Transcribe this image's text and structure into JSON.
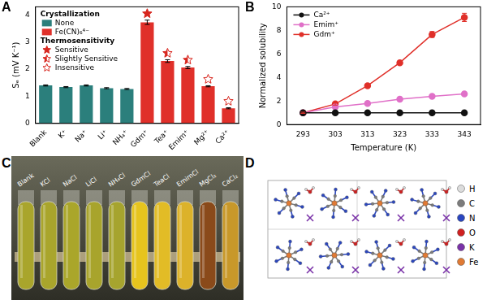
{
  "chart_data": [
    {
      "panel_label": "A",
      "type": "bar",
      "categories": [
        "Blank",
        "K⁺",
        "Na⁺",
        "Li⁺",
        "NH₄⁺",
        "Gdm⁺",
        "Tea⁺",
        "Emim⁺",
        "Mg²⁺",
        "Ca²⁺"
      ],
      "values": [
        1.4,
        1.34,
        1.4,
        1.3,
        1.27,
        3.73,
        2.3,
        2.06,
        1.37,
        0.56
      ],
      "errors": [
        0.02,
        0.02,
        0.02,
        0.02,
        0.02,
        0.08,
        0.05,
        0.04,
        0.02,
        0.02
      ],
      "colors": [
        "#2b7f7c",
        "#2b7f7c",
        "#2b7f7c",
        "#2b7f7c",
        "#2b7f7c",
        "#e0302a",
        "#e0302a",
        "#e0302a",
        "#e0302a",
        "#e0302a"
      ],
      "markers": [
        null,
        null,
        null,
        null,
        null,
        "star_filled",
        "star_half",
        "star_half",
        "star_open",
        "star_open"
      ],
      "y_label": "Sₑ (mV K⁻¹)",
      "ylim": [
        0,
        4.3
      ],
      "yticks": [
        0,
        1,
        2,
        3,
        4
      ],
      "grid": false,
      "legend": "upper left",
      "legend_groups": [
        {
          "title": "Crystallization",
          "items": [
            {
              "name": "None",
              "color": "#2b7f7c"
            },
            {
              "name": "Fe(CN)₆⁴⁻",
              "color": "#e0302a"
            }
          ]
        },
        {
          "title": "Thermosensitivity",
          "items": [
            {
              "name": "Sensitive",
              "marker": "star_filled"
            },
            {
              "name": "Slightly Sensitive",
              "marker": "star_half"
            },
            {
              "name": "Insensitive",
              "marker": "star_open"
            }
          ]
        }
      ]
    },
    {
      "panel_label": "B",
      "type": "line",
      "x": [
        293,
        303,
        313,
        323,
        333,
        343
      ],
      "series": [
        {
          "name": "Ca²⁺",
          "color": "#111111",
          "values": [
            1,
            1,
            1,
            1,
            1,
            1
          ]
        },
        {
          "name": "Emim⁺",
          "color": "#e070c8",
          "values": [
            1,
            1.5,
            1.8,
            2.15,
            2.4,
            2.6
          ]
        },
        {
          "name": "Gdm⁺",
          "color": "#e0302a",
          "values": [
            1,
            1.75,
            3.3,
            5.25,
            7.65,
            9.1
          ],
          "errors": [
            0.05,
            0.1,
            0.1,
            0.15,
            0.25,
            0.35
          ]
        }
      ],
      "marker": "circle",
      "x_label": "Temperature (K)",
      "y_label": "Normalized solubility",
      "xlim": [
        288,
        348
      ],
      "xticks": [
        293,
        303,
        313,
        323,
        333,
        343
      ],
      "ylim": [
        0,
        10
      ],
      "yticks": [
        0,
        2,
        4,
        6,
        8,
        10
      ],
      "grid": false,
      "legend": "upper left"
    }
  ],
  "photo": {
    "panel_label": "C",
    "labels": [
      "Blank",
      "KCl",
      "NaCl",
      "LiCl",
      "NH₄Cl",
      "GdmCl",
      "TeaCl",
      "EmimCl",
      "MgCl₂",
      "CaCl₂"
    ],
    "colors": [
      "#a9a52c",
      "#a9a52c",
      "#aaa62a",
      "#a8a42c",
      "#a6a42e",
      "#e6c41e",
      "#e2bc26",
      "#dcb22a",
      "#8a4a1a",
      "#c8982a"
    ]
  },
  "structure": {
    "panel_label": "D",
    "elements": [
      {
        "name": "H",
        "color": "#dcdcdc"
      },
      {
        "name": "C",
        "color": "#7c7c7c"
      },
      {
        "name": "N",
        "color": "#2a46c0"
      },
      {
        "name": "O",
        "color": "#d02020"
      },
      {
        "name": "K",
        "color": "#7a32a8"
      },
      {
        "name": "Fe",
        "color": "#e07a34"
      }
    ]
  }
}
